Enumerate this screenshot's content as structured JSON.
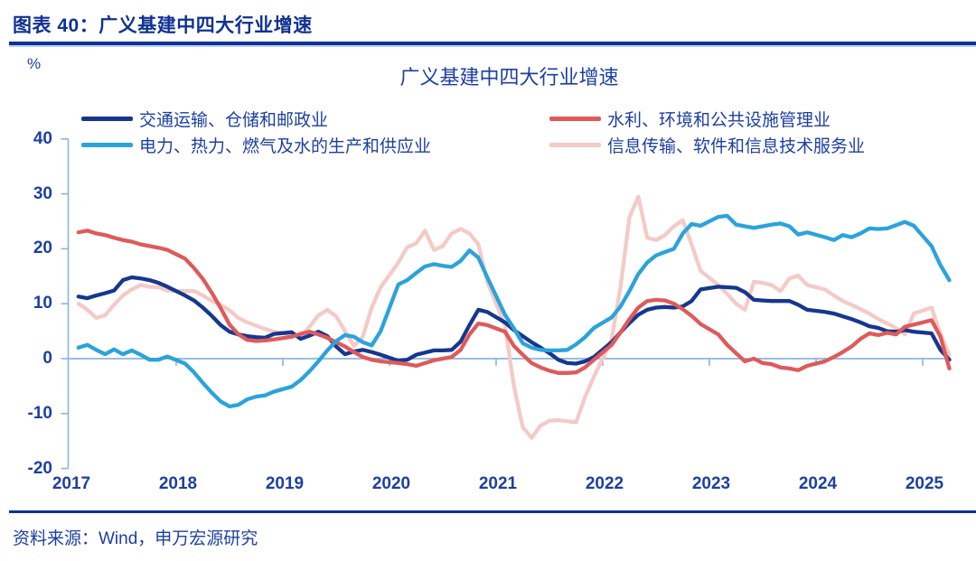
{
  "header": {
    "figure_label": "图表 40：广义基建中四大行业增速"
  },
  "footer": {
    "source": "资料来源：Wind，申万宏源研究"
  },
  "colors": {
    "header_navy": "#0e3194",
    "label_navy": "#1d3fa3",
    "axis_blue": "#8ab4e2"
  },
  "chart_data": {
    "type": "line",
    "title": "广义基建中四大行业增速",
    "y_unit": "%",
    "ylabel": "",
    "xlabel": "",
    "ylim": [
      -20,
      40
    ],
    "y_ticks": [
      40,
      30,
      20,
      10,
      0,
      -10,
      -20
    ],
    "x_ticks": [
      2017,
      2018,
      2019,
      2020,
      2021,
      2022,
      2023,
      2024,
      2025
    ],
    "grid": false,
    "legend_position": "top",
    "axis_color": "#8ab4e2",
    "x_note": "monthly cumulative YoY, Feb–Dec each year (Jan omitted), 2017-02 to 2025-04",
    "x": [
      2017.083,
      2017.167,
      2017.25,
      2017.333,
      2017.417,
      2017.5,
      2017.583,
      2017.667,
      2017.75,
      2017.833,
      2017.917,
      2018.083,
      2018.167,
      2018.25,
      2018.333,
      2018.417,
      2018.5,
      2018.583,
      2018.667,
      2018.75,
      2018.833,
      2018.917,
      2019.083,
      2019.167,
      2019.25,
      2019.333,
      2019.417,
      2019.5,
      2019.583,
      2019.667,
      2019.75,
      2019.833,
      2019.917,
      2020.083,
      2020.167,
      2020.25,
      2020.333,
      2020.417,
      2020.5,
      2020.583,
      2020.667,
      2020.75,
      2020.833,
      2020.917,
      2021.083,
      2021.167,
      2021.25,
      2021.333,
      2021.417,
      2021.5,
      2021.583,
      2021.667,
      2021.75,
      2021.833,
      2021.917,
      2022.083,
      2022.167,
      2022.25,
      2022.333,
      2022.417,
      2022.5,
      2022.583,
      2022.667,
      2022.75,
      2022.833,
      2022.917,
      2023.083,
      2023.167,
      2023.25,
      2023.333,
      2023.417,
      2023.5,
      2023.583,
      2023.667,
      2023.75,
      2023.833,
      2023.917,
      2024.083,
      2024.167,
      2024.25,
      2024.333,
      2024.417,
      2024.5,
      2024.583,
      2024.667,
      2024.75,
      2024.833,
      2024.917,
      2025.083,
      2025.167,
      2025.25
    ],
    "draw_order": [
      3,
      0,
      1,
      2
    ],
    "series": [
      {
        "name": "交通运输、仓储和邮政业",
        "color": "#16378e",
        "values": [
          11.3,
          11.0,
          11.5,
          11.9,
          12.4,
          14.3,
          14.8,
          14.6,
          14.3,
          13.8,
          13.1,
          11.5,
          10.6,
          9.3,
          7.8,
          6.1,
          4.9,
          4.4,
          4.1,
          3.9,
          3.8,
          4.5,
          4.8,
          3.6,
          4.2,
          4.9,
          4.1,
          2.2,
          0.8,
          1.3,
          1.6,
          1.2,
          0.7,
          -0.4,
          -0.2,
          0.7,
          1.1,
          1.5,
          1.5,
          1.6,
          3.1,
          6.1,
          8.9,
          8.5,
          6.6,
          5.2,
          4.1,
          3.0,
          2.0,
          1.0,
          -0.2,
          -0.8,
          -0.9,
          -0.5,
          0.3,
          3.0,
          4.8,
          6.5,
          8.0,
          8.9,
          9.3,
          9.4,
          9.3,
          9.5,
          10.5,
          12.6,
          13.1,
          13.0,
          12.9,
          12.1,
          10.7,
          10.6,
          10.5,
          10.5,
          10.5,
          9.8,
          8.9,
          8.5,
          8.2,
          7.7,
          7.2,
          6.6,
          5.9,
          5.6,
          5.0,
          4.9,
          5.2,
          4.9,
          4.6,
          1.6,
          -0.2
        ]
      },
      {
        "name": "水利、环境和公共设施管理业",
        "color": "#df5a5a",
        "values": [
          23.0,
          23.3,
          22.8,
          22.5,
          22.0,
          21.6,
          21.3,
          20.8,
          20.5,
          20.2,
          19.8,
          18.2,
          16.5,
          14.5,
          12.0,
          9.2,
          6.2,
          4.4,
          3.4,
          3.2,
          3.3,
          3.5,
          4.0,
          4.5,
          4.9,
          4.4,
          3.8,
          3.0,
          2.2,
          1.2,
          0.3,
          -0.2,
          -0.5,
          -0.8,
          -1.0,
          -1.3,
          -0.8,
          -0.3,
          0.0,
          0.3,
          1.6,
          4.4,
          6.4,
          6.1,
          4.9,
          2.3,
          0.7,
          -0.8,
          -1.6,
          -2.2,
          -2.6,
          -2.6,
          -2.5,
          -1.6,
          -0.2,
          2.5,
          4.8,
          7.2,
          9.3,
          10.5,
          10.7,
          10.6,
          10.0,
          9.0,
          7.8,
          6.3,
          4.4,
          2.5,
          1.0,
          -0.5,
          0.0,
          -0.8,
          -1.0,
          -1.6,
          -1.8,
          -2.1,
          -1.3,
          -0.5,
          0.3,
          1.2,
          2.2,
          3.6,
          4.6,
          4.3,
          4.7,
          4.4,
          5.8,
          6.2,
          7.0,
          4.0,
          -1.8
        ]
      },
      {
        "name": "电力、热力、燃气及水的生产和供应业",
        "color": "#2ba3db",
        "values": [
          2.0,
          2.5,
          1.6,
          0.8,
          1.7,
          0.8,
          1.5,
          0.7,
          -0.2,
          -0.2,
          0.4,
          -0.9,
          -2.5,
          -4.4,
          -6.2,
          -7.8,
          -8.7,
          -8.4,
          -7.4,
          -6.9,
          -6.7,
          -6.0,
          -5.1,
          -3.9,
          -2.3,
          -0.5,
          1.5,
          3.2,
          4.3,
          4.0,
          3.0,
          2.4,
          5.0,
          13.5,
          14.3,
          15.6,
          16.8,
          17.2,
          16.9,
          16.7,
          17.8,
          19.7,
          18.4,
          14.8,
          8.0,
          5.5,
          2.8,
          2.0,
          1.6,
          1.5,
          1.5,
          1.6,
          2.6,
          3.9,
          5.6,
          7.5,
          9.5,
          12.3,
          15.4,
          17.5,
          18.8,
          19.4,
          20.0,
          22.8,
          24.5,
          24.2,
          25.8,
          26.0,
          24.4,
          24.1,
          23.8,
          24.1,
          24.4,
          24.6,
          24.1,
          22.6,
          23.0,
          22.1,
          21.6,
          22.5,
          22.1,
          22.8,
          23.7,
          23.6,
          23.7,
          24.3,
          24.9,
          24.2,
          20.5,
          17.0,
          14.3
        ]
      },
      {
        "name": "信息传输、软件和信息技术服务业",
        "color": "#f4cac7",
        "values": [
          10.0,
          8.9,
          7.4,
          7.9,
          9.8,
          11.5,
          12.6,
          13.4,
          13.1,
          13.0,
          12.4,
          12.3,
          12.3,
          11.5,
          10.5,
          9.8,
          8.8,
          7.4,
          6.6,
          6.0,
          5.4,
          4.9,
          4.4,
          4.1,
          5.8,
          7.9,
          8.9,
          7.7,
          5.0,
          2.3,
          4.0,
          9.3,
          13.0,
          17.5,
          20.3,
          21.0,
          23.3,
          19.8,
          20.5,
          22.8,
          23.6,
          22.8,
          20.8,
          14.0,
          6.0,
          -5.0,
          -12.5,
          -14.4,
          -12.2,
          -11.3,
          -11.2,
          -11.4,
          -11.6,
          -7.0,
          -3.3,
          3.5,
          13.1,
          25.7,
          29.5,
          22.0,
          21.6,
          22.5,
          24.1,
          25.2,
          20.8,
          16.0,
          13.4,
          11.8,
          10.0,
          8.9,
          14.0,
          13.8,
          13.4,
          12.3,
          14.6,
          15.1,
          13.4,
          12.6,
          11.5,
          10.5,
          9.8,
          9.0,
          8.2,
          7.2,
          6.4,
          5.6,
          4.4,
          8.2,
          9.3,
          4.5,
          0.7
        ]
      }
    ]
  }
}
